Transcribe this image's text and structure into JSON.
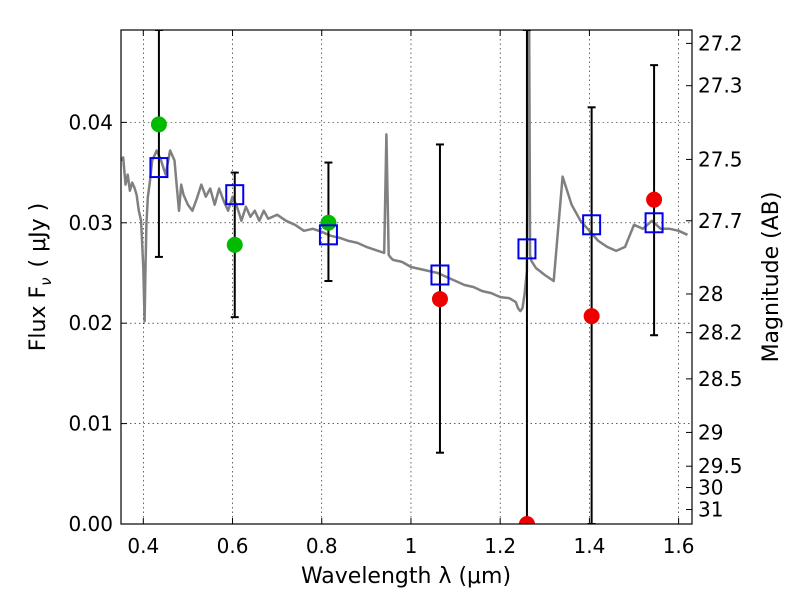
{
  "chart_data": {
    "type": "scatter",
    "xlabel": "Wavelength  λ (μm)",
    "ylabel": "Flux  F",
    "ylabel_sub": "ν",
    "ylabel_unit": "( μJy )",
    "ylabel_right": "Magnitude (AB)",
    "xlim": [
      0.35,
      1.63
    ],
    "ylim": [
      0.0,
      0.0492
    ],
    "x_ticks": [
      0.4,
      0.6,
      0.8,
      1.0,
      1.2,
      1.4,
      1.6
    ],
    "x_tick_labels": [
      "0.4",
      "0.6",
      "0.8",
      "1",
      "1.2",
      "1.4",
      "1.6"
    ],
    "y_ticks": [
      0.0,
      0.01,
      0.02,
      0.03,
      0.04
    ],
    "y_tick_labels": [
      "0.00",
      "0.01",
      "0.02",
      "0.03",
      "0.04"
    ],
    "mag_ticks": [
      27.2,
      27.3,
      27.5,
      27.7,
      28,
      28.2,
      28.5,
      29,
      29.5,
      30,
      31
    ],
    "mag_tick_labels": [
      "27.2",
      "27.3",
      "27.5",
      "27.7",
      "28",
      "28.2",
      "28.5",
      "29",
      "29.5",
      "30",
      "31"
    ],
    "grid": true,
    "colors": {
      "model": "#808080",
      "observed_optical": "#00bb00",
      "observed_ir": "#ee0000",
      "model_flux": "#0000ee",
      "errorbar": "#000000"
    },
    "series": [
      {
        "id": "model_sed",
        "type": "line",
        "x": [
          0.35,
          0.355,
          0.36,
          0.365,
          0.37,
          0.375,
          0.38,
          0.385,
          0.39,
          0.395,
          0.4,
          0.403,
          0.405,
          0.407,
          0.41,
          0.415,
          0.42,
          0.43,
          0.44,
          0.45,
          0.46,
          0.47,
          0.475,
          0.48,
          0.485,
          0.49,
          0.5,
          0.51,
          0.52,
          0.53,
          0.54,
          0.55,
          0.56,
          0.57,
          0.58,
          0.59,
          0.6,
          0.61,
          0.62,
          0.63,
          0.64,
          0.65,
          0.66,
          0.67,
          0.68,
          0.7,
          0.72,
          0.74,
          0.76,
          0.78,
          0.8,
          0.82,
          0.84,
          0.86,
          0.88,
          0.9,
          0.92,
          0.94,
          0.945,
          0.95,
          0.955,
          0.96,
          0.98,
          1.0,
          1.02,
          1.04,
          1.06,
          1.08,
          1.1,
          1.12,
          1.14,
          1.16,
          1.18,
          1.2,
          1.22,
          1.235,
          1.24,
          1.245,
          1.25,
          1.255,
          1.26,
          1.263,
          1.265,
          1.267,
          1.27,
          1.28,
          1.3,
          1.32,
          1.34,
          1.36,
          1.38,
          1.4,
          1.42,
          1.44,
          1.46,
          1.48,
          1.5,
          1.52,
          1.54,
          1.56,
          1.58,
          1.6,
          1.62
        ],
        "y": [
          0.0362,
          0.0365,
          0.0338,
          0.0348,
          0.0332,
          0.034,
          0.0335,
          0.0328,
          0.0312,
          0.0302,
          0.0255,
          0.0202,
          0.0255,
          0.0298,
          0.0325,
          0.0342,
          0.0362,
          0.0372,
          0.0362,
          0.0348,
          0.0372,
          0.0362,
          0.0336,
          0.0312,
          0.0338,
          0.0328,
          0.0318,
          0.0312,
          0.0324,
          0.0338,
          0.0326,
          0.0334,
          0.0318,
          0.0334,
          0.0322,
          0.0312,
          0.0326,
          0.0316,
          0.0302,
          0.0316,
          0.0306,
          0.0312,
          0.0302,
          0.0312,
          0.0304,
          0.0308,
          0.0302,
          0.0298,
          0.0292,
          0.0294,
          0.0291,
          0.0287,
          0.0285,
          0.0282,
          0.028,
          0.0276,
          0.0273,
          0.027,
          0.0388,
          0.0268,
          0.0265,
          0.0263,
          0.0261,
          0.0256,
          0.0254,
          0.0252,
          0.025,
          0.0246,
          0.0242,
          0.0238,
          0.0236,
          0.0232,
          0.023,
          0.0226,
          0.0225,
          0.0221,
          0.0215,
          0.0212,
          0.0215,
          0.023,
          0.0252,
          0.0492,
          0.0492,
          0.0268,
          0.0262,
          0.0255,
          0.0248,
          0.0242,
          0.0346,
          0.0318,
          0.0302,
          0.0292,
          0.0282,
          0.0276,
          0.0272,
          0.0276,
          0.0298,
          0.0294,
          0.0302,
          0.0294,
          0.0294,
          0.0292,
          0.0288
        ]
      },
      {
        "id": "observed_optical",
        "type": "scatter",
        "x": [
          0.435,
          0.605,
          0.815
        ],
        "y": [
          0.0398,
          0.0278,
          0.03
        ]
      },
      {
        "id": "observed_ir",
        "type": "scatter",
        "x": [
          1.065,
          1.26,
          1.405,
          1.545
        ],
        "y": [
          0.0224,
          0.0,
          0.0207,
          0.0323
        ]
      },
      {
        "id": "model_flux",
        "type": "scatter",
        "x": [
          0.435,
          0.605,
          0.815,
          1.065,
          1.26,
          1.405,
          1.545
        ],
        "y": [
          0.0355,
          0.0328,
          0.0288,
          0.0248,
          0.0274,
          0.0298,
          0.03
        ]
      },
      {
        "id": "errorbars",
        "type": "errorbar",
        "x": [
          0.435,
          0.605,
          0.815,
          1.065,
          1.26,
          1.405,
          1.545
        ],
        "ylow": [
          0.0266,
          0.0206,
          0.0242,
          0.0071,
          0.0,
          0.0,
          0.0188
        ],
        "yhigh": [
          0.0492,
          0.035,
          0.036,
          0.0378,
          0.0492,
          0.0415,
          0.0457
        ]
      }
    ]
  }
}
